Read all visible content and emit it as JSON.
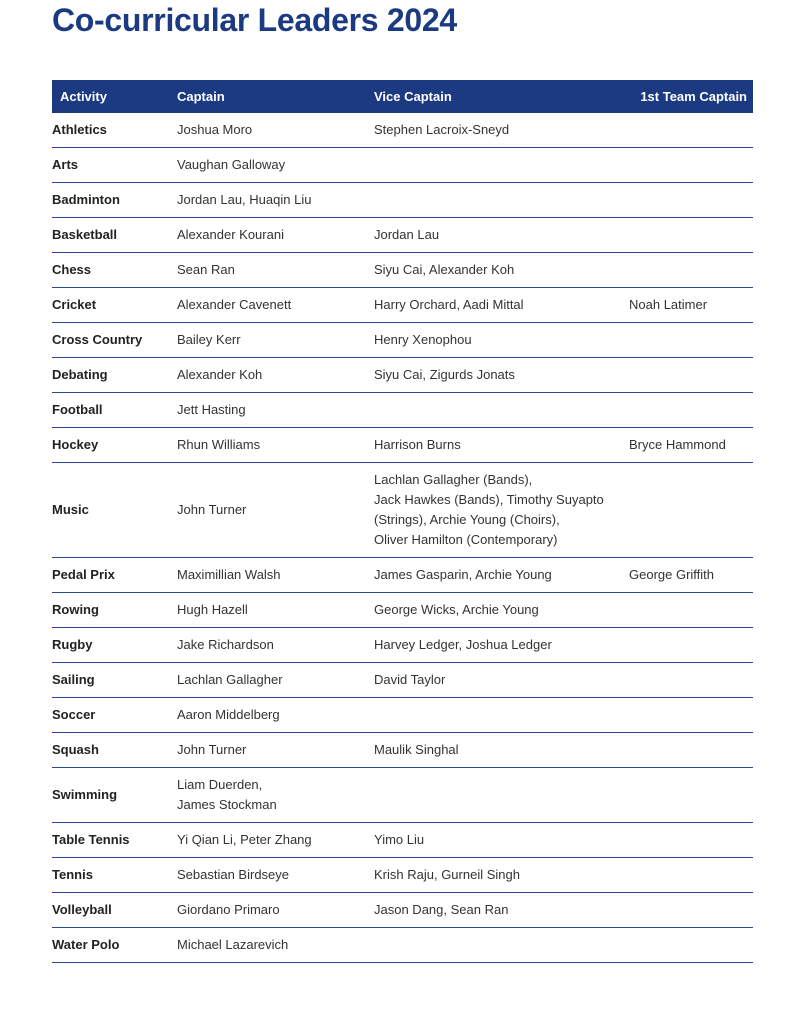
{
  "title": "Co-curricular Leaders 2024",
  "columns": [
    "Activity",
    "Captain",
    "Vice Captain",
    "1st Team Captain"
  ],
  "colors": {
    "accent": "#1b3a82"
  },
  "rows": [
    [
      "Athletics",
      "Joshua Moro",
      "Stephen Lacroix-Sneyd",
      ""
    ],
    [
      "Arts",
      "Vaughan Galloway",
      "",
      ""
    ],
    [
      "Badminton",
      "Jordan Lau, Huaqin Liu",
      "",
      ""
    ],
    [
      "Basketball",
      "Alexander Kourani",
      "Jordan Lau",
      ""
    ],
    [
      "Chess",
      "Sean Ran",
      "Siyu Cai, Alexander Koh",
      ""
    ],
    [
      "Cricket",
      "Alexander Cavenett",
      "Harry Orchard, Aadi Mittal",
      "Noah Latimer"
    ],
    [
      "Cross Country",
      "Bailey Kerr",
      "Henry Xenophou",
      ""
    ],
    [
      "Debating",
      "Alexander Koh",
      "Siyu Cai, Zigurds Jonats",
      ""
    ],
    [
      "Football",
      "Jett Hasting",
      "",
      ""
    ],
    [
      "Hockey",
      "Rhun Williams",
      "Harrison Burns",
      "Bryce Hammond"
    ],
    [
      "Music",
      "John Turner",
      "Lachlan Gallagher (Bands),\nJack Hawkes (Bands), Timothy Suyapto\n(Strings), Archie Young (Choirs),\nOliver Hamilton (Contemporary)",
      ""
    ],
    [
      "Pedal Prix",
      "Maximillian Walsh",
      "James Gasparin, Archie Young",
      "George Griffith"
    ],
    [
      "Rowing",
      "Hugh Hazell",
      "George Wicks, Archie Young",
      ""
    ],
    [
      "Rugby",
      "Jake Richardson",
      "Harvey Ledger, Joshua Ledger",
      ""
    ],
    [
      "Sailing",
      "Lachlan Gallagher",
      "David Taylor",
      ""
    ],
    [
      "Soccer",
      "Aaron Middelberg",
      "",
      ""
    ],
    [
      "Squash",
      "John Turner",
      "Maulik Singhal",
      ""
    ],
    [
      "Swimming",
      "Liam Duerden,\nJames Stockman",
      "",
      ""
    ],
    [
      "Table Tennis",
      "Yi Qian Li, Peter Zhang",
      "Yimo Liu",
      ""
    ],
    [
      "Tennis",
      "Sebastian Birdseye",
      "Krish Raju, Gurneil Singh",
      ""
    ],
    [
      "Volleyball",
      "Giordano Primaro",
      "Jason Dang, Sean Ran",
      ""
    ],
    [
      "Water Polo",
      "Michael Lazarevich",
      "",
      ""
    ]
  ]
}
